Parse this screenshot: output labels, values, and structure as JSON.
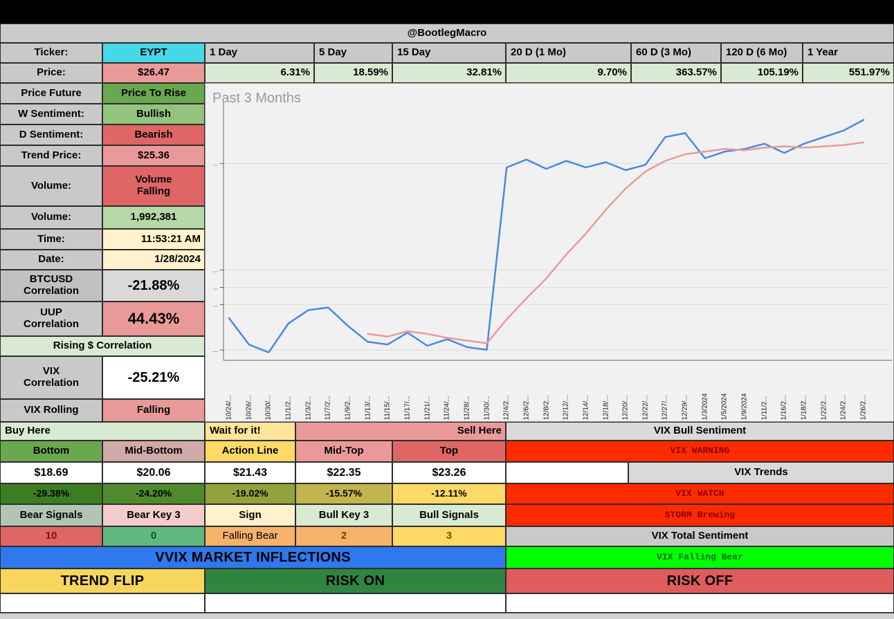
{
  "header": {
    "handle": "@BootlegMacro"
  },
  "ticker": {
    "label": "Ticker:",
    "symbol": "EYPT"
  },
  "price": {
    "label": "Price:",
    "value": "$26.47"
  },
  "periods": [
    {
      "label": "1 Day",
      "return": "6.31%"
    },
    {
      "label": "5 Day",
      "return": "18.59%"
    },
    {
      "label": "15 Day",
      "return": "32.81%"
    },
    {
      "label": "20 D (1 Mo)",
      "return": "9.70%"
    },
    {
      "label": "60 D (3 Mo)",
      "return": "363.57%"
    },
    {
      "label": "120 D (6 Mo)",
      "return": "105.19%"
    },
    {
      "label": "1 Year",
      "return": "551.97%"
    }
  ],
  "stats": {
    "price_future": {
      "label": "Price Future",
      "value": "Price To Rise"
    },
    "w_sentiment": {
      "label": "W Sentiment:",
      "value": "Bullish"
    },
    "d_sentiment": {
      "label": "D Sentiment:",
      "value": "Bearish"
    },
    "trend_price": {
      "label": "Trend Price:",
      "value": "$25.36"
    },
    "volume_state": {
      "label": "Volume:",
      "value": "Volume Falling"
    },
    "volume": {
      "label": "Volume:",
      "value": "1,992,381"
    },
    "time": {
      "label": "Time:",
      "value": "11:53:21 AM"
    },
    "date": {
      "label": "Date:",
      "value": "1/28/2024"
    },
    "btc_corr": {
      "label": "BTCUSD Correlation",
      "value": "-21.88%"
    },
    "uup_corr": {
      "label": "UUP Correlation",
      "value": "44.43%"
    },
    "rising_corr": {
      "label": "Rising $ Correlation"
    },
    "vix_corr": {
      "label": "VIX Correlation",
      "value": "-25.21%"
    },
    "vix_rolling": {
      "label": "VIX Rolling",
      "value": "Falling"
    }
  },
  "chart_data": {
    "type": "line",
    "title": "Past 3 Months",
    "x_labels": [
      "10/24/...",
      "10/26/...",
      "10/30/...",
      "11/1/2...",
      "11/3/2...",
      "11/7/2...",
      "11/9/2...",
      "11/13/...",
      "11/15/...",
      "11/17/...",
      "11/21/...",
      "11/24/...",
      "11/28/...",
      "11/30/...",
      "12/4/2...",
      "12/6/2...",
      "12/8/2...",
      "12/12/...",
      "12/14/...",
      "12/18/...",
      "12/20/...",
      "12/22/...",
      "12/27/...",
      "12/29/...",
      "1/3/2024",
      "1/5/2024",
      "1/9/2024",
      "1/11/2...",
      "1/16/2...",
      "1/18/2...",
      "1/22/2...",
      "1/24/2...",
      "1/26/2..."
    ],
    "y_ticks": [
      {
        "label": "...",
        "value": 74.5
      },
      {
        "label": "...",
        "value": 34.2
      },
      {
        "label": "...",
        "value": 27.6
      },
      {
        "label": "...",
        "value": 21.1
      },
      {
        "label": "...",
        "value": 3.9
      }
    ],
    "series": [
      {
        "name": "price",
        "color": "#4a86e8",
        "values": [
          16,
          6,
          3,
          14,
          19,
          20,
          13,
          7,
          6,
          10.5,
          5.5,
          8,
          5,
          4,
          73,
          76,
          72.5,
          75.5,
          73,
          75,
          72,
          74,
          84.5,
          86,
          76.5,
          79,
          80,
          82,
          78.5,
          82,
          84.5,
          87,
          91
        ]
      },
      {
        "name": "trend",
        "color": "#ea9999",
        "values": [
          null,
          null,
          null,
          null,
          null,
          null,
          null,
          10,
          9,
          11,
          10,
          8.5,
          7.5,
          6.5,
          15.5,
          23.5,
          31,
          40,
          48,
          57,
          65,
          71.5,
          75.5,
          78,
          79,
          80,
          79.5,
          80.5,
          81,
          80.5,
          81,
          81.5,
          82.5
        ]
      }
    ],
    "ylim": [
      0,
      100
    ],
    "grid": true,
    "legend_position": "none"
  },
  "zones": {
    "buy": "Buy Here",
    "wait": "Wait for it!",
    "sell": "Sell Here"
  },
  "levels": {
    "headers": [
      "Bottom",
      "Mid-Bottom",
      "Action Line",
      "Mid-Top",
      "Top"
    ],
    "prices": [
      "$18.69",
      "$20.06",
      "$21.43",
      "$22.35",
      "$23.26"
    ],
    "percents": [
      "-29.38%",
      "-24.20%",
      "-19.02%",
      "-15.57%",
      "-12.11%"
    ],
    "signal_headers": [
      "Bear Signals",
      "Bear Key 3",
      "Sign",
      "Bull Key 3",
      "Bull Signals"
    ],
    "signal_values": [
      "10",
      "0",
      "Falling Bear",
      "2",
      "3"
    ]
  },
  "vix": {
    "bull_sentiment": "VIX Bull Sentiment",
    "warning": "VIX WARNING",
    "trends": "VIX Trends",
    "watch": "VIX WATCH",
    "storm": "STORM Brewing",
    "total": "VIX Total Sentiment",
    "falling_bear": "VIX Falling Bear"
  },
  "banners": {
    "vvix": "VVIX MARKET INFLECTIONS",
    "trend_flip": "TREND FLIP",
    "risk_on": "RISK ON",
    "risk_off": "RISK OFF"
  },
  "colors": {
    "accent_cyan": "#46d7e8",
    "bullish_green": "#93c47d",
    "bearish_red": "#e06666",
    "warning_red": "#ff2b00",
    "signal_green": "#00ff00",
    "banner_blue": "#2f78ed"
  }
}
